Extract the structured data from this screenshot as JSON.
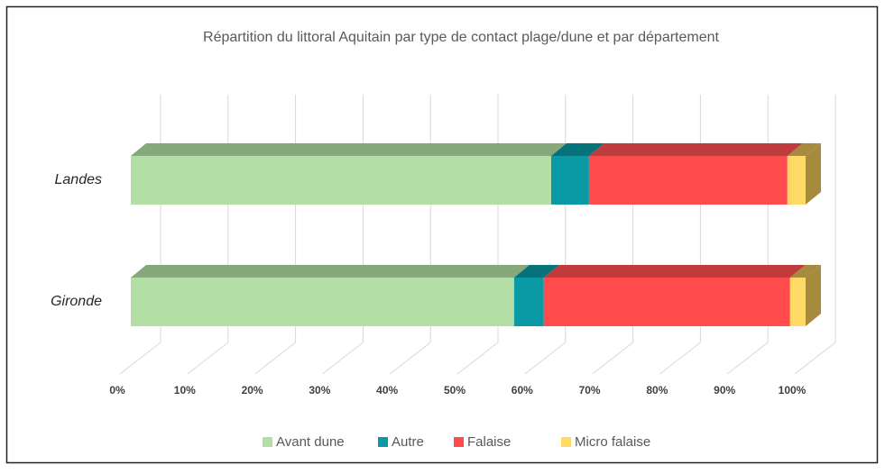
{
  "chart_data": {
    "type": "bar3d-stacked-horizontal",
    "title": "Répartition du littoral Aquitain par type de contact plage/dune et par département",
    "categories": [
      "Landes",
      "Gironde"
    ],
    "series": [
      {
        "name": "Avant dune",
        "color": "#b3dfa6",
        "top_color": "#86a87a",
        "values": [
          62.3,
          56.8
        ]
      },
      {
        "name": "Autre",
        "color": "#0a9aa6",
        "top_color": "#08727a",
        "values": [
          5.6,
          4.4
        ]
      },
      {
        "name": "Falaise",
        "color": "#ff4b4b",
        "top_color": "#c03b3b",
        "values": [
          29.4,
          36.5
        ]
      },
      {
        "name": "Micro falaise",
        "color": "#ffd966",
        "top_color": "#a68a3e",
        "values": [
          2.7,
          2.3
        ]
      }
    ],
    "xlim": [
      0,
      100
    ],
    "xticks": [
      {
        "value": 0,
        "label": "0%"
      },
      {
        "value": 10,
        "label": "10%"
      },
      {
        "value": 20,
        "label": "20%"
      },
      {
        "value": 30,
        "label": "30%"
      },
      {
        "value": 40,
        "label": "40%"
      },
      {
        "value": 50,
        "label": "50%"
      },
      {
        "value": 60,
        "label": "60%"
      },
      {
        "value": 70,
        "label": "70%"
      },
      {
        "value": 80,
        "label": "80%"
      },
      {
        "value": 90,
        "label": "90%"
      },
      {
        "value": 100,
        "label": "100%"
      }
    ],
    "grid": true,
    "legend": "bottom"
  }
}
